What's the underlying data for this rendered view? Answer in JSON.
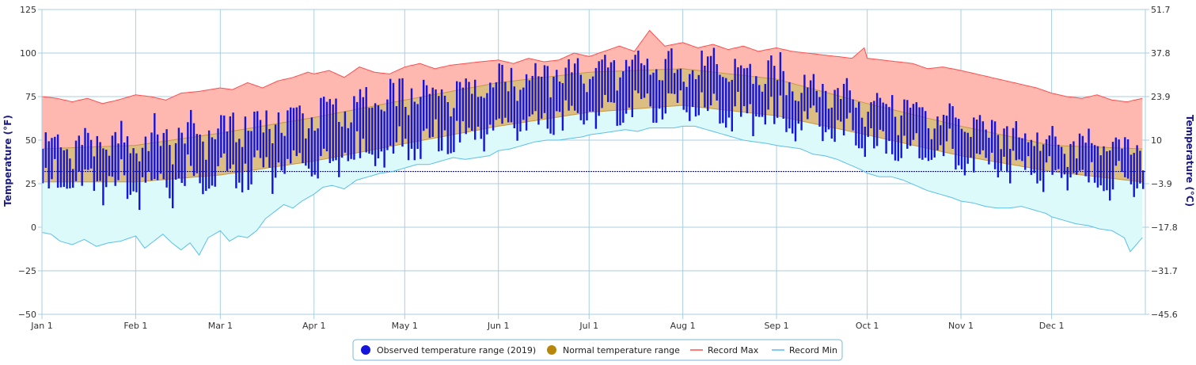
{
  "chart_data": {
    "type": "range",
    "title": "",
    "y_left_label": "Temperature (°F)",
    "y_right_label": "Temperature (°C)",
    "y_left_ticks": [
      "125",
      "100",
      "75",
      "50",
      "25",
      "0",
      "−25",
      "−50"
    ],
    "y_right_ticks": [
      "51.7",
      "37.8",
      "23.9",
      "10",
      "−3.9",
      "−17.8",
      "−31.7",
      "−45.6"
    ],
    "ylim_f": [
      -50,
      125
    ],
    "freezing_line_f": 32,
    "x_ticks": [
      {
        "label": "Jan 1",
        "day": 0
      },
      {
        "label": "Feb 1",
        "day": 31
      },
      {
        "label": "Mar 1",
        "day": 59
      },
      {
        "label": "Apr 1",
        "day": 90
      },
      {
        "label": "May 1",
        "day": 120
      },
      {
        "label": "Jun 1",
        "day": 151
      },
      {
        "label": "Jul 1",
        "day": 181
      },
      {
        "label": "Aug 1",
        "day": 212
      },
      {
        "label": "Sep 1",
        "day": 243
      },
      {
        "label": "Oct 1",
        "day": 273
      },
      {
        "label": "Nov 1",
        "day": 304
      },
      {
        "label": "Dec 1",
        "day": 334
      }
    ],
    "days_in_year": 365,
    "grid": true,
    "legend_position": "bottom",
    "legend": [
      {
        "label": "Observed temperature range (2019)",
        "marker": "circle",
        "color": "#1414dc"
      },
      {
        "label": "Normal temperature range",
        "marker": "circle",
        "color": "#b8860b"
      },
      {
        "label": "Record Max",
        "marker": "line",
        "color": "#ff5050"
      },
      {
        "label": "Record Min",
        "marker": "line",
        "color": "#55bbee"
      }
    ],
    "colors": {
      "observed": "#1414dc",
      "normal_fill": "#dcbe82",
      "normal_line": "#c8963c",
      "record_max_line": "#ff4d4d",
      "record_max_fill": "#ffb8b0",
      "record_min_line": "#5bbfea",
      "record_min_fill": "#dcfafa",
      "grid": "#a8cfe0",
      "freezing": "#000066"
    },
    "record_max_f": [
      [
        0,
        75
      ],
      [
        5,
        74
      ],
      [
        10,
        72
      ],
      [
        15,
        74
      ],
      [
        20,
        71
      ],
      [
        25,
        73
      ],
      [
        31,
        76
      ],
      [
        36,
        75
      ],
      [
        41,
        73
      ],
      [
        46,
        77
      ],
      [
        52,
        78
      ],
      [
        59,
        80
      ],
      [
        63,
        79
      ],
      [
        68,
        83
      ],
      [
        73,
        80
      ],
      [
        78,
        84
      ],
      [
        83,
        86
      ],
      [
        88,
        89
      ],
      [
        90,
        88
      ],
      [
        95,
        90
      ],
      [
        100,
        86
      ],
      [
        105,
        92
      ],
      [
        110,
        89
      ],
      [
        115,
        88
      ],
      [
        120,
        92
      ],
      [
        125,
        94
      ],
      [
        130,
        91
      ],
      [
        135,
        93
      ],
      [
        140,
        94
      ],
      [
        145,
        95
      ],
      [
        151,
        96
      ],
      [
        156,
        94
      ],
      [
        161,
        97
      ],
      [
        166,
        95
      ],
      [
        171,
        96
      ],
      [
        176,
        100
      ],
      [
        181,
        98
      ],
      [
        186,
        101
      ],
      [
        191,
        104
      ],
      [
        196,
        101
      ],
      [
        201,
        113
      ],
      [
        206,
        104
      ],
      [
        212,
        106
      ],
      [
        217,
        103
      ],
      [
        222,
        105
      ],
      [
        227,
        102
      ],
      [
        232,
        104
      ],
      [
        237,
        101
      ],
      [
        243,
        103
      ],
      [
        248,
        101
      ],
      [
        253,
        100
      ],
      [
        258,
        99
      ],
      [
        263,
        98
      ],
      [
        268,
        97
      ],
      [
        272,
        103
      ],
      [
        273,
        97
      ],
      [
        278,
        96
      ],
      [
        283,
        95
      ],
      [
        288,
        94
      ],
      [
        293,
        91
      ],
      [
        298,
        92
      ],
      [
        304,
        90
      ],
      [
        309,
        88
      ],
      [
        314,
        86
      ],
      [
        319,
        84
      ],
      [
        324,
        82
      ],
      [
        329,
        80
      ],
      [
        334,
        77
      ],
      [
        339,
        75
      ],
      [
        344,
        74
      ],
      [
        349,
        76
      ],
      [
        354,
        73
      ],
      [
        359,
        72
      ],
      [
        364,
        74
      ]
    ],
    "record_min_f": [
      [
        0,
        -3
      ],
      [
        3,
        -4
      ],
      [
        6,
        -8
      ],
      [
        10,
        -10
      ],
      [
        14,
        -7
      ],
      [
        18,
        -11
      ],
      [
        22,
        -9
      ],
      [
        26,
        -8
      ],
      [
        31,
        -5
      ],
      [
        34,
        -12
      ],
      [
        37,
        -8
      ],
      [
        40,
        -4
      ],
      [
        43,
        -9
      ],
      [
        46,
        -13
      ],
      [
        49,
        -9
      ],
      [
        52,
        -16
      ],
      [
        55,
        -6
      ],
      [
        59,
        -2
      ],
      [
        62,
        -8
      ],
      [
        65,
        -5
      ],
      [
        68,
        -6
      ],
      [
        71,
        -2
      ],
      [
        74,
        5
      ],
      [
        77,
        9
      ],
      [
        80,
        13
      ],
      [
        83,
        11
      ],
      [
        86,
        15
      ],
      [
        90,
        19
      ],
      [
        93,
        23
      ],
      [
        96,
        24
      ],
      [
        100,
        22
      ],
      [
        104,
        27
      ],
      [
        108,
        29
      ],
      [
        112,
        31
      ],
      [
        116,
        32
      ],
      [
        120,
        34
      ],
      [
        124,
        36
      ],
      [
        128,
        36
      ],
      [
        132,
        38
      ],
      [
        136,
        40
      ],
      [
        140,
        39
      ],
      [
        144,
        40
      ],
      [
        148,
        41
      ],
      [
        151,
        44
      ],
      [
        155,
        45
      ],
      [
        159,
        47
      ],
      [
        163,
        49
      ],
      [
        167,
        50
      ],
      [
        171,
        50
      ],
      [
        175,
        51
      ],
      [
        179,
        52
      ],
      [
        181,
        53
      ],
      [
        185,
        54
      ],
      [
        189,
        55
      ],
      [
        193,
        56
      ],
      [
        197,
        55
      ],
      [
        201,
        57
      ],
      [
        205,
        57
      ],
      [
        209,
        57
      ],
      [
        212,
        58
      ],
      [
        216,
        58
      ],
      [
        220,
        56
      ],
      [
        224,
        54
      ],
      [
        228,
        52
      ],
      [
        232,
        50
      ],
      [
        236,
        49
      ],
      [
        240,
        48
      ],
      [
        243,
        47
      ],
      [
        247,
        46
      ],
      [
        251,
        45
      ],
      [
        255,
        42
      ],
      [
        259,
        41
      ],
      [
        263,
        39
      ],
      [
        267,
        36
      ],
      [
        271,
        33
      ],
      [
        273,
        31
      ],
      [
        277,
        29
      ],
      [
        281,
        29
      ],
      [
        285,
        27
      ],
      [
        289,
        24
      ],
      [
        293,
        21
      ],
      [
        297,
        19
      ],
      [
        301,
        17
      ],
      [
        304,
        15
      ],
      [
        308,
        14
      ],
      [
        312,
        12
      ],
      [
        316,
        11
      ],
      [
        320,
        11
      ],
      [
        324,
        12
      ],
      [
        328,
        10
      ],
      [
        332,
        8
      ],
      [
        334,
        6
      ],
      [
        338,
        4
      ],
      [
        342,
        2
      ],
      [
        346,
        1
      ],
      [
        350,
        -1
      ],
      [
        354,
        -2
      ],
      [
        358,
        -6
      ],
      [
        360,
        -14
      ],
      [
        364,
        -6
      ]
    ],
    "normal_high_f": [
      [
        0,
        45
      ],
      [
        31,
        47
      ],
      [
        59,
        54
      ],
      [
        90,
        63
      ],
      [
        120,
        73
      ],
      [
        151,
        83
      ],
      [
        181,
        89
      ],
      [
        212,
        91
      ],
      [
        243,
        85
      ],
      [
        273,
        71
      ],
      [
        304,
        58
      ],
      [
        334,
        47
      ],
      [
        364,
        45
      ]
    ],
    "normal_low_f": [
      [
        0,
        26
      ],
      [
        31,
        26
      ],
      [
        59,
        30
      ],
      [
        90,
        38
      ],
      [
        120,
        48
      ],
      [
        151,
        58
      ],
      [
        181,
        66
      ],
      [
        212,
        70
      ],
      [
        243,
        64
      ],
      [
        273,
        53
      ],
      [
        304,
        41
      ],
      [
        334,
        32
      ],
      [
        364,
        26
      ]
    ]
  }
}
